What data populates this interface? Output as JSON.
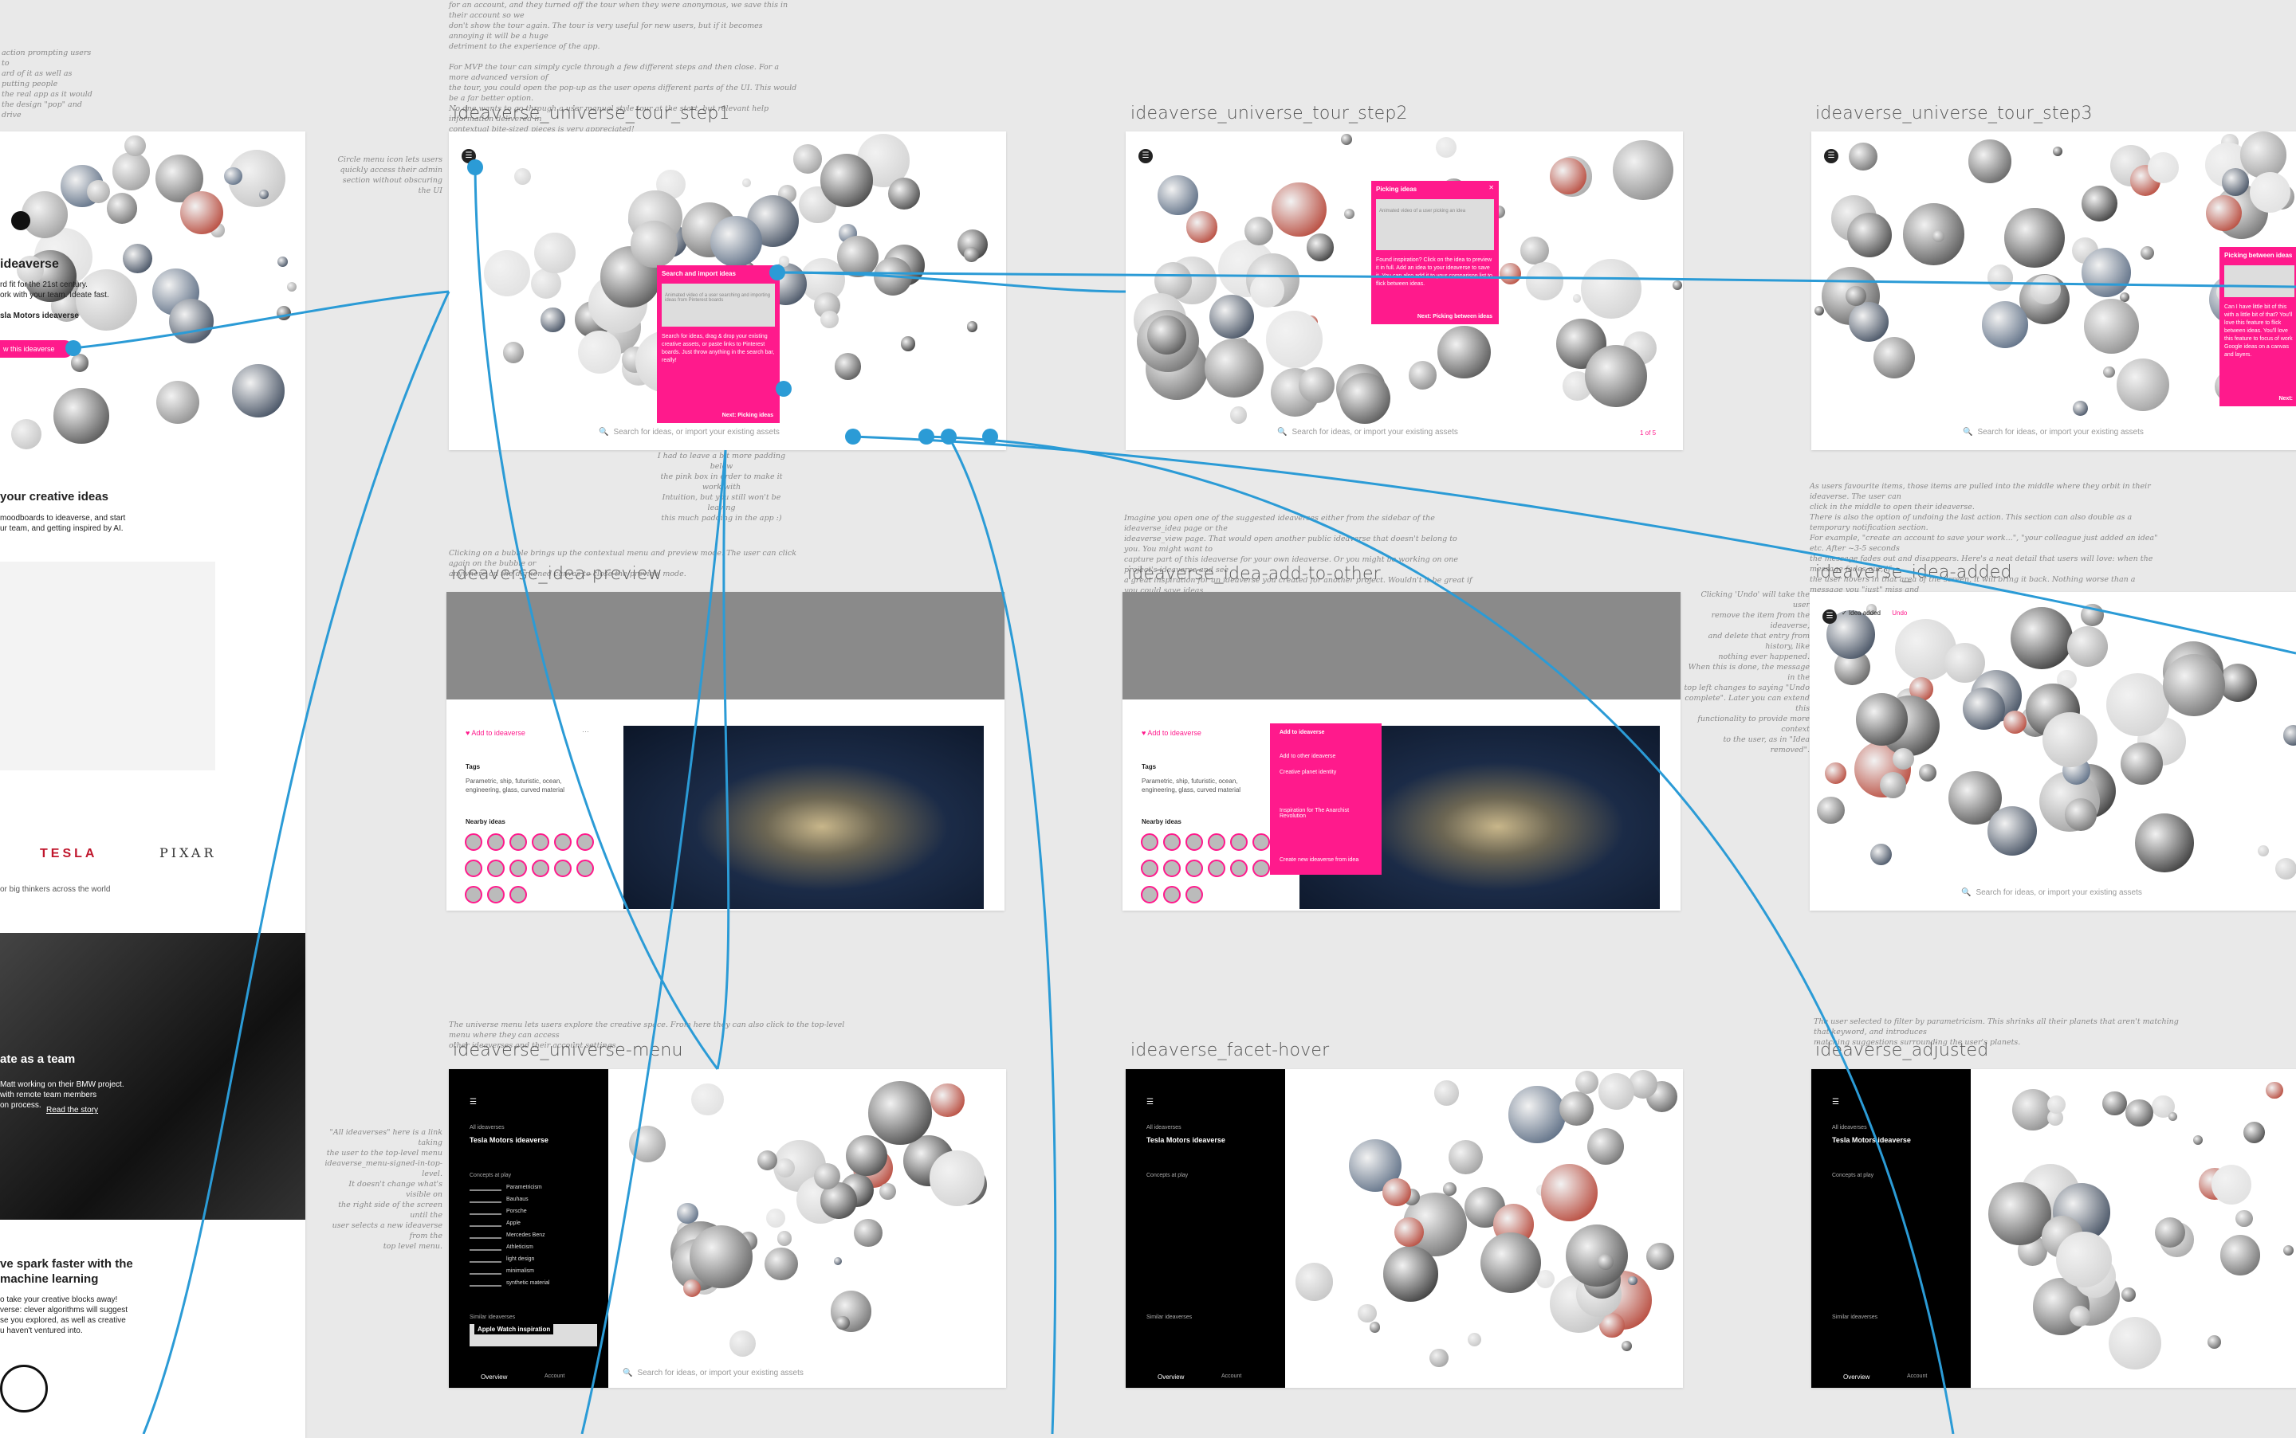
{
  "notes": {
    "top_left": "action prompting users to\nard of it as well as putting people\nthe real app as it would\nthe design \"pop\" and drive",
    "top_center": "for an account, and they turned off the tour when they were anonymous, we save this in their account so we\ndon't show the tour again. The tour is very useful for new users, but if it becomes annoying it will be a huge\ndetriment to the experience of the app.\n\nFor MVP the tour can simply cycle through a few different steps and then close. For a more advanced version of\nthe tour, you could open the pop-up as the user opens different parts of the UI. This would be a far better option.\nNo one wants to go through a user manual style tour at the start, but relevant help information delivered in\ncontextual bite-sized pieces is very appreciated!",
    "circle_menu": "Circle menu icon lets users\nquickly access their admin\nsection without obscuring the UI",
    "padding": "I had to leave a bit more padding below\nthe pink box in order to make it work with\nIntuition, but you still won't be leaving\nthis much padding in the app :)",
    "bubble_click": "Clicking on a bubble brings up the contextual menu and preview mode. The user can click again on the bubble or\nanywhere on the darkened canvas to close the preview mode.",
    "imagine": "Imagine you open one of the suggested ideaverses either from the sidebar of the ideaverse_idea page or the\nideaverse_view page. That would open another public ideaverse that doesn't belong to you. You might want to\ncapture part of this ideaverse for your own ideaverse. Or you might be working on one project's ideaverse and see\na great inspiration for an ideaverse you created for another project. Wouldn't it be great if you could save ideas\nacross ideaverses?",
    "favourite": "As users favourite items, those items are pulled into the middle where they orbit in their ideaverse. The user can\nclick in the middle to open their ideaverse.\nThere is also the option of undoing the last action. This section can also double as a temporary notification section.\nFor example, \"create an account to save your work...\", \"your colleague just added an idea\" etc. After ~3-5 seconds\nthe message fades out and disappears. Here's a neat detail that users will love: when the message fades out, if\nthe user hovers in that area of the screen, it will bring it back. Nothing worse than a message you \"just\" miss and\nthen have to figure out where to find the functionality in the rest of the UI.",
    "undo": "Clicking 'Undo' will take the user\nremove the item from the ideaverse,\nand delete that entry from history, like\nnothing ever happened.\nWhen this is done, the message in the\ntop left changes to saying \"Undo\ncomplete\". Later you can extend this\nfunctionality to provide more context\nto the user, as in \"Idea removed\".",
    "menu": "The universe menu lets users explore the creative space. From here they can also click to the top-level menu where they can access\nother ideaverses and their account settings.",
    "all_ideaverses": "\"All ideaverses\" here is a link taking\nthe user to the top-level menu\nideaverse_menu-signed-in-top-level.\nIt doesn't change what's visible on\nthe right side of the screen until the\nuser selects a new ideaverse from the\ntop level menu.",
    "filter": "The user selected to filter by parametricism. This shrinks all their planets that aren't matching that keyword, and introduces\nmatching suggestions surrounding the user's planets."
  },
  "artboards": {
    "tour1": "ideaverse_universe_tour_step1",
    "tour2": "ideaverse_universe_tour_step2",
    "tour3": "ideaverse_universe_tour_step3",
    "preview": "ideaverse_idea-preview",
    "add_other": "ideaverse_idea-add-to-other",
    "added": "ideaverse_idea-added",
    "menu": "ideaverse_universe-menu",
    "facet": "ideaverse_facet-hover",
    "adjusted": "ideaverse_adjusted"
  },
  "landing": {
    "brand": "ideaverse",
    "tagline": "rd fit for the 21st century.\nork with your team. Ideate fast.",
    "tesla_link": "sla Motors ideaverse",
    "view_btn": "w this ideaverse",
    "creative_heading": "your creative ideas",
    "creative_body": "moodboards to ideaverse, and start\nur team, and getting inspired by AI.",
    "logo_tesla": "TESLA",
    "logo_pixar": "PIXAR",
    "thinkers": "or big thinkers across the world",
    "team_heading": "ate as a team",
    "team_body": "Matt working on their BMW project.\nwith remote team members\non process.",
    "read_story": "Read the story",
    "spark_heading": "ve spark faster with the\nmachine learning",
    "spark_body": "o take your creative blocks away!\nverse: clever algorithms will suggest\nse you explored, as well as creative\nu haven't ventured into."
  },
  "tour1": {
    "pop_title": "Search and import ideas",
    "pop_img_caption": "Animated video of a user searching and importing ideas from Pinterest boards",
    "pop_body": "Search for ideas, drag & drop your existing creative assets, or paste links to Pinterest boards. Just throw anything in the search bar, really!",
    "pop_next": "Next: Picking ideas",
    "search_placeholder": "Search for ideas, or import your existing assets"
  },
  "tour2": {
    "pop_title": "Picking ideas",
    "pop_close": "✕",
    "pop_img_caption": "Animated video of a user picking an idea",
    "pop_body": "Found inspiration? Click on the idea to preview it in full. Add an idea to your ideaverse to save it. You can also add it to your comparison list to flick between ideas.",
    "pop_next": "Next: Picking between ideas",
    "search_placeholder": "Search for ideas, or import your existing assets",
    "page": "1 of 5"
  },
  "tour3": {
    "pop_title": "Picking between ideas",
    "pop_body": "Can I have little bit of this with a little bit of that? You'll love this feature to flick between ideas. You'll love this feature to focus of work Google ideas on a canvas and layers.",
    "pop_next": "Next:",
    "search_placeholder": "Search for ideas, or import your existing assets"
  },
  "preview": {
    "add": "Add to ideaverse",
    "more": "···",
    "tags_label": "Tags",
    "tags": "Parametric, ship, futuristic, ocean,\nengineering, glass, curved material",
    "nearby": "Nearby ideas"
  },
  "add_other": {
    "add": "Add to ideaverse",
    "dropdown_title": "Add to ideaverse",
    "other": "Add to other ideaverse",
    "item1": "Creative planet identity",
    "item2": "Inspiration for The Anarchist Revolution",
    "create": "Create new ideaverse from idea",
    "tags_label": "Tags",
    "tags": "Parametric, ship, futuristic, ocean,\nengineering, glass, curved material",
    "nearby": "Nearby ideas"
  },
  "added": {
    "msg": "Idea added",
    "undo": "Undo",
    "search_placeholder": "Search for ideas, or import your existing assets"
  },
  "menu_panel": {
    "crumb": "All ideaverses",
    "title": "Tesla Motors ideaverse",
    "concepts_label": "Concepts at play",
    "concepts": [
      "Parametricism",
      "Bauhaus",
      "Porsche",
      "Apple",
      "Mercedes Benz",
      "Athleticism",
      "light design",
      "minimalism",
      "synthetic material"
    ],
    "similar": "Similar ideaverses",
    "similar_item": "Apple Watch inspiration",
    "overview": "Overview",
    "account": "Account",
    "search_placeholder": "Search for ideas, or import your existing assets"
  },
  "colors": {
    "pink": "#ff1a8c",
    "link_blue": "#2b9bd6"
  }
}
